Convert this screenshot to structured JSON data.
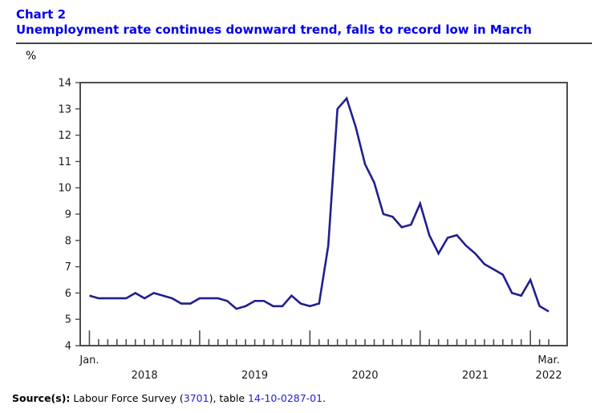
{
  "header": {
    "chart_label": "Chart 2",
    "title": "Unemployment rate continues downward trend, falls to record low in March"
  },
  "source": {
    "prefix": "Source(s):",
    "before_link1": " Labour Force Survey (",
    "link1": "3701",
    "between_links": "), table ",
    "link2": "14-10-0287-01",
    "suffix": "."
  },
  "colors": {
    "title_blue": "#0000EE",
    "link_blue": "#2222D6",
    "line_navy": "#1F1F90",
    "axis_gray": "#4D4D4D",
    "tick_label_color": "#1A1A1A"
  },
  "chart_data": {
    "type": "line",
    "title": "Unemployment rate continues downward trend, falls to record low in March",
    "series_name": "Unemployment rate",
    "ylabel": "%",
    "ylim": [
      4,
      14
    ],
    "y_ticks": [
      4,
      5,
      6,
      7,
      8,
      9,
      10,
      11,
      12,
      13,
      14
    ],
    "grid": false,
    "legend": false,
    "x_axis": {
      "start": "2018-01",
      "end": "2022-03",
      "freq": "monthly",
      "first_tick_label": "Jan.",
      "last_tick_label": "Mar.",
      "year_labels": [
        "2018",
        "2019",
        "2020",
        "2021",
        "2022"
      ]
    },
    "values": [
      5.9,
      5.8,
      5.8,
      5.8,
      5.8,
      6.0,
      5.8,
      6.0,
      5.9,
      5.8,
      5.6,
      5.6,
      5.8,
      5.8,
      5.8,
      5.7,
      5.4,
      5.5,
      5.7,
      5.7,
      5.5,
      5.5,
      5.9,
      5.6,
      5.5,
      5.6,
      7.8,
      13.0,
      13.4,
      12.3,
      10.9,
      10.2,
      9.0,
      8.9,
      8.5,
      8.6,
      9.4,
      8.2,
      7.5,
      8.1,
      8.2,
      7.8,
      7.5,
      7.1,
      6.9,
      6.7,
      6.0,
      5.9,
      6.5,
      5.5,
      5.3
    ]
  }
}
